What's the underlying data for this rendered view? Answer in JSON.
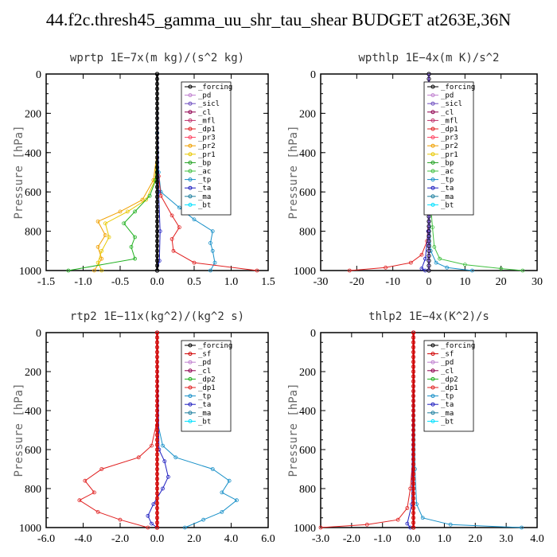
{
  "figure_title": "44.f2c.thresh45_gamma_uu_shr_tau_shear  BUDGET at263E,36N",
  "colors": {
    "forcing": "#000000",
    "sf": "#d00000",
    "pd": "#c080d0",
    "sicl": "#7050c0",
    "cl": "#900050",
    "mfl": "#c0306a",
    "dp1": "#e02020",
    "dp2": "#20b020",
    "pr3": "#ff4060",
    "pr2": "#f0a000",
    "pr1": "#e8c800",
    "bp": "#20a020",
    "ac": "#40c040",
    "tp": "#1890c8",
    "ta": "#2020c0",
    "ma": "#2080a0",
    "bt": "#00e0ff"
  },
  "chart_data": [
    {
      "type": "line",
      "title": "wprtp  1E−7x(m kg)/(s^2 kg)",
      "ylabel": "Pressure [hPa]",
      "xlim": [
        -1.5,
        1.5
      ],
      "ylim": [
        1000,
        0
      ],
      "xticks": [
        "-1.5",
        "-1.0",
        "-0.5",
        "0.0",
        "0.5",
        "1.0",
        "1.5"
      ],
      "yticks": [
        "0",
        "200",
        "400",
        "600",
        "800",
        "1000"
      ],
      "legend": [
        "_forcing",
        "_pd",
        "_sicl",
        "_cl",
        "_mfl",
        "_dp1",
        "_pr3",
        "_pr2",
        "_pr1",
        "_bp",
        "_ac",
        "_tp",
        "_ta",
        "_ma",
        "_bt"
      ],
      "series": [
        {
          "key": "tp",
          "name": "_tp",
          "values": [
            [
              0.0,
              0
            ],
            [
              0.0,
              300
            ],
            [
              0.02,
              500
            ],
            [
              0.05,
              600
            ],
            [
              0.3,
              680
            ],
            [
              0.5,
              740
            ],
            [
              0.75,
              800
            ],
            [
              0.72,
              860
            ],
            [
              0.75,
              900
            ],
            [
              0.78,
              960
            ],
            [
              0.72,
              1000
            ]
          ]
        },
        {
          "key": "dp1",
          "name": "_dp1",
          "values": [
            [
              0.0,
              0
            ],
            [
              0.0,
              400
            ],
            [
              0.02,
              520
            ],
            [
              0.05,
              620
            ],
            [
              0.2,
              720
            ],
            [
              0.3,
              780
            ],
            [
              0.2,
              840
            ],
            [
              0.22,
              900
            ],
            [
              0.5,
              960
            ],
            [
              1.35,
              1000
            ]
          ]
        },
        {
          "key": "pr2",
          "name": "_pr2",
          "values": [
            [
              0.0,
              0
            ],
            [
              0.0,
              400
            ],
            [
              -0.05,
              540
            ],
            [
              -0.2,
              640
            ],
            [
              -0.5,
              700
            ],
            [
              -0.8,
              750
            ],
            [
              -0.7,
              820
            ],
            [
              -0.8,
              880
            ],
            [
              -0.75,
              940
            ],
            [
              -0.85,
              1000
            ]
          ]
        },
        {
          "key": "pr1",
          "name": "_pr1",
          "values": [
            [
              0.0,
              0
            ],
            [
              0.0,
              400
            ],
            [
              -0.03,
              540
            ],
            [
              -0.15,
              640
            ],
            [
              -0.4,
              700
            ],
            [
              -0.7,
              760
            ],
            [
              -0.65,
              830
            ],
            [
              -0.75,
              900
            ],
            [
              -0.8,
              960
            ],
            [
              -0.75,
              1000
            ]
          ]
        },
        {
          "key": "dp2",
          "name": "_bp",
          "values": [
            [
              0.0,
              0
            ],
            [
              0.0,
              400
            ],
            [
              -0.02,
              540
            ],
            [
              -0.1,
              620
            ],
            [
              -0.3,
              700
            ],
            [
              -0.45,
              760
            ],
            [
              -0.3,
              830
            ],
            [
              -0.35,
              880
            ],
            [
              -0.3,
              940
            ],
            [
              -1.2,
              1000
            ]
          ]
        },
        {
          "key": "ta",
          "name": "_ta",
          "values": [
            [
              0.0,
              0
            ],
            [
              0.02,
              600
            ],
            [
              0.04,
              800
            ],
            [
              0.03,
              950
            ],
            [
              0.0,
              1000
            ]
          ]
        },
        {
          "key": "forcing",
          "name": "_forcing",
          "values": [
            [
              0.0,
              0
            ],
            [
              0.0,
              1000
            ]
          ]
        }
      ]
    },
    {
      "type": "line",
      "title": "wpthlp  1E−4x(m K)/s^2",
      "ylabel": "Pressure [hPa]",
      "xlim": [
        -30,
        30
      ],
      "ylim": [
        1000,
        0
      ],
      "xticks": [
        "-30",
        "-20",
        "-10",
        "0",
        "10",
        "20",
        "30"
      ],
      "yticks": [
        "0",
        "200",
        "400",
        "600",
        "800",
        "1000"
      ],
      "legend": [
        "_forcing",
        "_pd",
        "_sicl",
        "_cl",
        "_mfl",
        "_dp1",
        "_pr3",
        "_pr2",
        "_pr1",
        "_bp",
        "_ac",
        "_tp",
        "_ta",
        "_ma",
        "_bt"
      ],
      "series": [
        {
          "key": "ac",
          "name": "_ac",
          "values": [
            [
              0.0,
              0
            ],
            [
              0.2,
              600
            ],
            [
              1.0,
              780
            ],
            [
              1.5,
              880
            ],
            [
              3,
              940
            ],
            [
              10,
              970
            ],
            [
              20,
              990
            ],
            [
              26,
              1000
            ]
          ]
        },
        {
          "key": "tp",
          "name": "_tp",
          "values": [
            [
              0.0,
              0
            ],
            [
              0.1,
              700
            ],
            [
              0.5,
              900
            ],
            [
              2,
              960
            ],
            [
              5,
              985
            ],
            [
              12,
              1000
            ]
          ]
        },
        {
          "key": "dp1",
          "name": "_dp1",
          "values": [
            [
              0.0,
              0
            ],
            [
              0.0,
              700
            ],
            [
              -0.5,
              850
            ],
            [
              -2,
              920
            ],
            [
              -5,
              960
            ],
            [
              -12,
              985
            ],
            [
              -22,
              1000
            ]
          ]
        },
        {
          "key": "ta",
          "name": "_ta",
          "values": [
            [
              0.0,
              0
            ],
            [
              -0.2,
              800
            ],
            [
              -1,
              940
            ],
            [
              -2,
              990
            ],
            [
              -1,
              1000
            ]
          ]
        },
        {
          "key": "sicl",
          "name": "_sicl",
          "values": [
            [
              0.0,
              0
            ],
            [
              0.0,
              1000
            ]
          ]
        }
      ]
    },
    {
      "type": "line",
      "title": "rtp2  1E−11x(kg^2)/(kg^2 s)",
      "ylabel": "Pressure [hPa]",
      "xlim": [
        -6,
        6
      ],
      "ylim": [
        1000,
        0
      ],
      "xticks": [
        "-6.0",
        "-4.0",
        "-2.0",
        "0.0",
        "2.0",
        "4.0",
        "6.0"
      ],
      "yticks": [
        "0",
        "200",
        "400",
        "600",
        "800",
        "1000"
      ],
      "legend": [
        "_forcing",
        "_sf",
        "_pd",
        "_cl",
        "_dp2",
        "_dp1",
        "_tp",
        "_ta",
        "_ma",
        "_bt"
      ],
      "series": [
        {
          "key": "tp",
          "name": "_tp",
          "values": [
            [
              0.0,
              0
            ],
            [
              0.0,
              450
            ],
            [
              0.3,
              580
            ],
            [
              1.0,
              640
            ],
            [
              3.0,
              700
            ],
            [
              3.9,
              760
            ],
            [
              3.5,
              820
            ],
            [
              4.3,
              860
            ],
            [
              3.5,
              920
            ],
            [
              2.5,
              960
            ],
            [
              1.5,
              1000
            ]
          ]
        },
        {
          "key": "dp1",
          "name": "_dp1",
          "values": [
            [
              0.0,
              0
            ],
            [
              0.0,
              450
            ],
            [
              -0.3,
              580
            ],
            [
              -1.0,
              640
            ],
            [
              -3.0,
              700
            ],
            [
              -3.9,
              760
            ],
            [
              -3.4,
              820
            ],
            [
              -4.2,
              860
            ],
            [
              -3.2,
              920
            ],
            [
              -2.0,
              960
            ],
            [
              -0.5,
              1000
            ]
          ]
        },
        {
          "key": "ta",
          "name": "_ta",
          "values": [
            [
              0.0,
              0
            ],
            [
              0.1,
              600
            ],
            [
              0.4,
              660
            ],
            [
              0.6,
              740
            ],
            [
              0.3,
              800
            ],
            [
              -0.2,
              880
            ],
            [
              -0.5,
              940
            ],
            [
              -0.3,
              980
            ],
            [
              0.0,
              1000
            ]
          ]
        },
        {
          "key": "sf",
          "name": "_sf",
          "values": [
            [
              0.0,
              0
            ],
            [
              0.0,
              1000
            ]
          ]
        }
      ]
    },
    {
      "type": "line",
      "title": "thlp2  1E−4x(K^2)/s",
      "ylabel": "Pressure [hPa]",
      "xlim": [
        -3,
        4
      ],
      "ylim": [
        1000,
        0
      ],
      "xticks": [
        "-3.0",
        "-2.0",
        "-1.0",
        "0.0",
        "1.0",
        "2.0",
        "3.0",
        "4.0"
      ],
      "yticks": [
        "0",
        "200",
        "400",
        "600",
        "800",
        "1000"
      ],
      "legend": [
        "_forcing",
        "_sf",
        "_pd",
        "_cl",
        "_dp2",
        "_dp1",
        "_tp",
        "_ta",
        "_ma",
        "_bt"
      ],
      "series": [
        {
          "key": "dp1",
          "name": "_dp1",
          "values": [
            [
              0.0,
              0
            ],
            [
              0.0,
              600
            ],
            [
              -0.1,
              800
            ],
            [
              -0.2,
              900
            ],
            [
              -0.5,
              960
            ],
            [
              -1.5,
              985
            ],
            [
              -3.0,
              1000
            ]
          ]
        },
        {
          "key": "tp",
          "name": "_tp",
          "values": [
            [
              0.0,
              0
            ],
            [
              0.05,
              700
            ],
            [
              0.1,
              880
            ],
            [
              0.3,
              950
            ],
            [
              1.2,
              985
            ],
            [
              3.5,
              1000
            ]
          ]
        },
        {
          "key": "ta",
          "name": "_ta",
          "values": [
            [
              0.0,
              0
            ],
            [
              -0.05,
              880
            ],
            [
              -0.2,
              980
            ],
            [
              -0.1,
              1000
            ]
          ]
        },
        {
          "key": "sf",
          "name": "_sf",
          "values": [
            [
              0.0,
              0
            ],
            [
              0.0,
              1000
            ]
          ]
        }
      ]
    }
  ]
}
